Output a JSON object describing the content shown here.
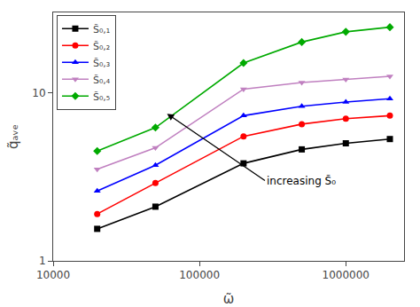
{
  "chart_data": {
    "type": "line",
    "x_label": "ω̃",
    "y_label": "q̃ₐᵥₑ",
    "log": true,
    "grid": false,
    "legend": "upper left",
    "x": [
      20000,
      50000,
      200000,
      500000,
      1000000,
      2000000
    ],
    "series": [
      {
        "name": "S̃₀,₁",
        "color": "black",
        "marker": "square",
        "values": [
          1.55,
          2.1,
          3.8,
          4.6,
          5.0,
          5.3
        ]
      },
      {
        "name": "S̃₀,₂",
        "color": "red",
        "marker": "circle",
        "values": [
          1.9,
          2.9,
          5.5,
          6.5,
          7.0,
          7.3
        ]
      },
      {
        "name": "S̃₀,₃",
        "color": "blue",
        "marker": "triangle-up",
        "values": [
          2.6,
          3.7,
          7.3,
          8.3,
          8.8,
          9.2
        ]
      },
      {
        "name": "S̃₀,₄",
        "color": "#c080c0",
        "marker": "triangle-down",
        "values": [
          3.5,
          4.7,
          10.5,
          11.5,
          12.0,
          12.5
        ]
      },
      {
        "name": "S̃₀,₅",
        "color": "#00aa00",
        "marker": "diamond",
        "values": [
          4.5,
          6.2,
          15.0,
          20.0,
          23.0,
          24.5
        ]
      }
    ],
    "xlim": [
      10000,
      2500000
    ],
    "ylim": [
      1,
      30
    ],
    "xticks": [
      10000,
      100000,
      1000000
    ],
    "yticks": [
      1,
      10
    ],
    "annotations": [
      {
        "text": "increasing S̃₀",
        "x": 280000,
        "y": 3.0,
        "arrow_x": 60000,
        "arrow_y": 7.5
      }
    ]
  }
}
